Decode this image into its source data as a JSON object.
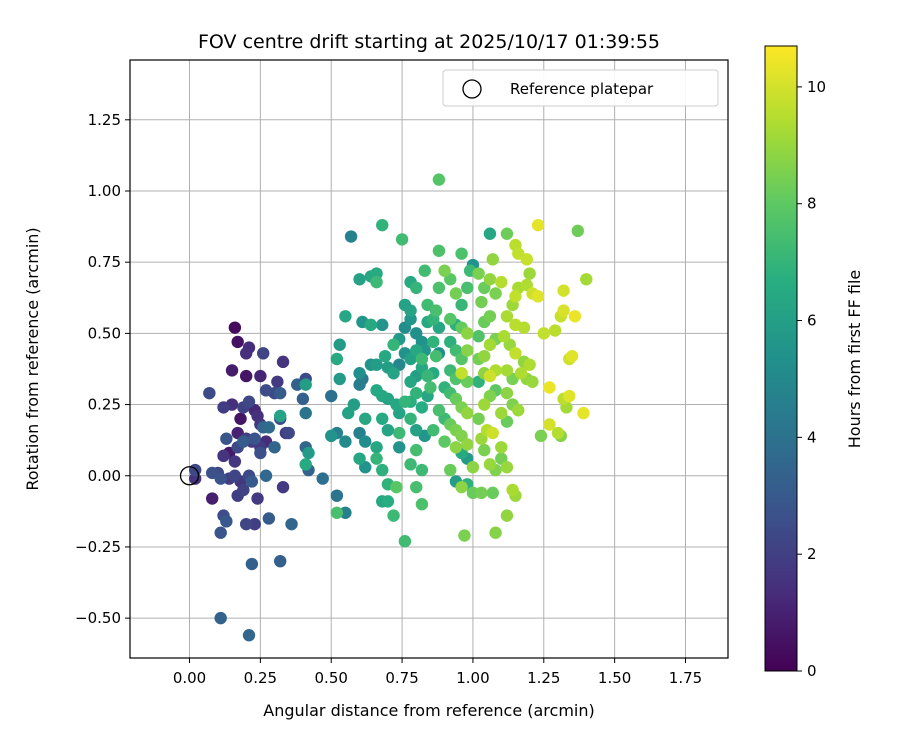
{
  "chart_data": {
    "type": "scatter",
    "title": "FOV centre drift starting at 2025/10/17 01:39:55",
    "xlabel": "Angular distance from reference (arcmin)",
    "ylabel": "Rotation from reference (arcmin)",
    "xlim": [
      -0.21,
      1.9
    ],
    "ylim": [
      -0.64,
      1.46
    ],
    "xticks": [
      "0.00",
      "0.25",
      "0.50",
      "0.75",
      "1.00",
      "1.25",
      "1.50",
      "1.75"
    ],
    "yticks": [
      "−0.50",
      "−0.25",
      "0.00",
      "0.25",
      "0.50",
      "0.75",
      "1.00",
      "1.25"
    ],
    "grid": true,
    "legend": {
      "position": "top-right",
      "label": "Reference platepar"
    },
    "reference_point": {
      "x": 0.0,
      "y": 0.0
    },
    "colorbar": {
      "label": "Hours from first FF file",
      "range": [
        0,
        10.7
      ],
      "ticks": [
        "0",
        "2",
        "4",
        "6",
        "8",
        "10"
      ],
      "colormap": "viridis"
    },
    "points": [
      [
        0.16,
        0.52,
        0.3
      ],
      [
        0.17,
        0.47,
        0.5
      ],
      [
        0.15,
        0.37,
        0.8
      ],
      [
        0.2,
        0.35,
        0.6
      ],
      [
        0.2,
        0.43,
        1.4
      ],
      [
        0.21,
        0.45,
        1.3
      ],
      [
        0.26,
        0.43,
        2.2
      ],
      [
        0.25,
        0.35,
        1.1
      ],
      [
        0.27,
        0.3,
        2.5
      ],
      [
        0.3,
        0.29,
        2.4
      ],
      [
        0.31,
        0.33,
        1.8
      ],
      [
        0.33,
        0.4,
        1.6
      ],
      [
        0.07,
        0.29,
        2.4
      ],
      [
        0.12,
        0.24,
        1.9
      ],
      [
        0.15,
        0.25,
        1.4
      ],
      [
        0.19,
        0.24,
        2.1
      ],
      [
        0.21,
        0.26,
        2.3
      ],
      [
        0.23,
        0.23,
        1.2
      ],
      [
        0.25,
        0.18,
        1.7
      ],
      [
        0.24,
        0.21,
        1.5
      ],
      [
        0.18,
        0.2,
        0.6
      ],
      [
        0.17,
        0.15,
        1.0
      ],
      [
        0.22,
        0.12,
        1.8
      ],
      [
        0.27,
        0.12,
        1.3
      ],
      [
        0.26,
        0.17,
        3.5
      ],
      [
        0.28,
        0.17,
        3.7
      ],
      [
        0.3,
        0.1,
        3.5
      ],
      [
        0.34,
        0.15,
        1.9
      ],
      [
        0.32,
        0.2,
        2.5
      ],
      [
        0.13,
        0.13,
        2.8
      ],
      [
        0.12,
        0.07,
        1.6
      ],
      [
        0.14,
        0.08,
        0.7
      ],
      [
        0.16,
        0.05,
        1.7
      ],
      [
        0.19,
        0.12,
        3.1
      ],
      [
        0.17,
        0.1,
        2.3
      ],
      [
        0.2,
        0.13,
        2.0
      ],
      [
        0.23,
        0.13,
        2.8
      ],
      [
        0.25,
        0.1,
        1.8
      ],
      [
        0.25,
        0.08,
        2.6
      ],
      [
        0.21,
        0.0,
        2.4
      ],
      [
        0.16,
        0.0,
        2.2
      ],
      [
        0.11,
        -0.01,
        2.7
      ],
      [
        0.08,
        0.01,
        2.6
      ],
      [
        0.02,
        0.02,
        2.3
      ],
      [
        0.02,
        -0.01,
        1.6
      ],
      [
        0.1,
        0.01,
        2.4
      ],
      [
        0.14,
        -0.01,
        1.9
      ],
      [
        0.18,
        -0.02,
        1.7
      ],
      [
        0.19,
        -0.05,
        2.1
      ],
      [
        0.22,
        -0.02,
        3.0
      ],
      [
        0.08,
        -0.08,
        0.9
      ],
      [
        0.17,
        -0.07,
        2.0
      ],
      [
        0.24,
        -0.08,
        1.8
      ],
      [
        0.27,
        0.0,
        3.6
      ],
      [
        0.33,
        -0.04,
        1.8
      ],
      [
        0.12,
        -0.14,
        2.5
      ],
      [
        0.13,
        -0.16,
        2.9
      ],
      [
        0.2,
        -0.17,
        2.2
      ],
      [
        0.23,
        -0.17,
        2.0
      ],
      [
        0.28,
        -0.15,
        3.1
      ],
      [
        0.36,
        -0.17,
        3.5
      ],
      [
        0.11,
        -0.2,
        2.8
      ],
      [
        0.22,
        -0.31,
        3.3
      ],
      [
        0.32,
        -0.3,
        3.2
      ],
      [
        0.11,
        -0.5,
        3.4
      ],
      [
        0.21,
        -0.56,
        3.5
      ],
      [
        0.35,
        0.15,
        2.3
      ],
      [
        0.38,
        0.32,
        3.3
      ],
      [
        0.41,
        0.34,
        2.4
      ],
      [
        0.41,
        0.32,
        5.9
      ],
      [
        0.4,
        0.27,
        3.3
      ],
      [
        0.32,
        0.29,
        3.1
      ],
      [
        0.32,
        0.21,
        6.2
      ],
      [
        0.41,
        0.22,
        4.1
      ],
      [
        0.41,
        0.1,
        3.5
      ],
      [
        0.42,
        0.08,
        5.8
      ],
      [
        0.41,
        0.04,
        6.5
      ],
      [
        0.42,
        0.02,
        3.4
      ],
      [
        0.47,
        -0.01,
        3.9
      ],
      [
        0.52,
        -0.07,
        4.1
      ],
      [
        0.52,
        -0.13,
        7.5
      ],
      [
        0.55,
        -0.13,
        4.6
      ],
      [
        0.5,
        0.14,
        5.5
      ],
      [
        0.52,
        0.15,
        4.6
      ],
      [
        0.55,
        0.12,
        5.1
      ],
      [
        0.5,
        0.28,
        4.0
      ],
      [
        0.53,
        0.34,
        5.8
      ],
      [
        0.53,
        0.46,
        5.8
      ],
      [
        0.52,
        0.41,
        6.5
      ],
      [
        0.55,
        0.56,
        6.3
      ],
      [
        0.56,
        0.22,
        6.1
      ],
      [
        0.6,
        0.36,
        5.3
      ],
      [
        0.6,
        0.32,
        4.5
      ],
      [
        0.61,
        0.34,
        4.3
      ],
      [
        0.58,
        0.25,
        5.9
      ],
      [
        0.62,
        0.2,
        6.3
      ],
      [
        0.6,
        0.15,
        4.6
      ],
      [
        0.62,
        0.12,
        5.2
      ],
      [
        0.6,
        0.06,
        6.3
      ],
      [
        0.62,
        0.03,
        5.4
      ],
      [
        0.57,
        0.84,
        4.7
      ],
      [
        0.6,
        0.69,
        6.1
      ],
      [
        0.64,
        0.7,
        6.3
      ],
      [
        0.66,
        0.71,
        6.5
      ],
      [
        0.66,
        0.68,
        7.2
      ],
      [
        0.68,
        0.88,
        6.9
      ],
      [
        0.75,
        0.83,
        7.3
      ],
      [
        0.61,
        0.54,
        5.6
      ],
      [
        0.64,
        0.53,
        6.5
      ],
      [
        0.68,
        0.53,
        5.5
      ],
      [
        0.66,
        0.39,
        5.9
      ],
      [
        0.69,
        0.42,
        6.4
      ],
      [
        0.72,
        0.46,
        7.0
      ],
      [
        0.64,
        0.39,
        5.5
      ],
      [
        0.66,
        0.3,
        6.4
      ],
      [
        0.68,
        0.28,
        6.3
      ],
      [
        0.7,
        0.27,
        6.2
      ],
      [
        0.68,
        0.2,
        6.5
      ],
      [
        0.7,
        0.16,
        6.2
      ],
      [
        0.66,
        0.1,
        6.3
      ],
      [
        0.66,
        0.06,
        7.0
      ],
      [
        0.68,
        0.02,
        6.8
      ],
      [
        0.7,
        -0.03,
        6.9
      ],
      [
        0.68,
        -0.09,
        6.3
      ],
      [
        0.7,
        -0.09,
        6.6
      ],
      [
        0.73,
        -0.04,
        7.9
      ],
      [
        0.72,
        -0.14,
        7.2
      ],
      [
        0.76,
        -0.23,
        7.3
      ],
      [
        0.74,
        0.1,
        5.5
      ],
      [
        0.74,
        0.15,
        7.2
      ],
      [
        0.73,
        0.25,
        6.3
      ],
      [
        0.76,
        0.26,
        7.0
      ],
      [
        0.78,
        0.26,
        6.7
      ],
      [
        0.74,
        0.39,
        4.9
      ],
      [
        0.76,
        0.43,
        5.4
      ],
      [
        0.78,
        0.41,
        6.1
      ],
      [
        0.74,
        0.48,
        5.7
      ],
      [
        0.76,
        0.52,
        5.2
      ],
      [
        0.78,
        0.55,
        5.6
      ],
      [
        0.76,
        0.6,
        6.1
      ],
      [
        0.78,
        0.58,
        6.2
      ],
      [
        0.8,
        0.66,
        7.0
      ],
      [
        0.78,
        0.68,
        6.4
      ],
      [
        0.8,
        0.5,
        5.3
      ],
      [
        0.82,
        0.47,
        5.4
      ],
      [
        0.8,
        0.44,
        6.4
      ],
      [
        0.82,
        0.41,
        7.2
      ],
      [
        0.8,
        0.35,
        6.0
      ],
      [
        0.82,
        0.38,
        6.4
      ],
      [
        0.78,
        0.33,
        6.3
      ],
      [
        0.8,
        0.29,
        6.9
      ],
      [
        0.84,
        0.28,
        6.3
      ],
      [
        0.82,
        0.24,
        6.6
      ],
      [
        0.78,
        0.2,
        7.0
      ],
      [
        0.8,
        0.16,
        6.1
      ],
      [
        0.83,
        0.14,
        5.6
      ],
      [
        0.8,
        0.09,
        7.4
      ],
      [
        0.78,
        0.04,
        7.2
      ],
      [
        0.82,
        0.02,
        7.2
      ],
      [
        0.8,
        -0.04,
        7.5
      ],
      [
        0.82,
        -0.1,
        7.6
      ],
      [
        0.85,
        0.31,
        7.4
      ],
      [
        0.86,
        0.36,
        6.5
      ],
      [
        0.87,
        0.42,
        7.4
      ],
      [
        0.86,
        0.47,
        6.9
      ],
      [
        0.84,
        0.54,
        6.5
      ],
      [
        0.86,
        0.55,
        7.0
      ],
      [
        0.88,
        0.52,
        6.3
      ],
      [
        0.84,
        0.6,
        7.3
      ],
      [
        0.87,
        0.58,
        7.5
      ],
      [
        0.83,
        0.72,
        7.3
      ],
      [
        0.88,
        0.66,
        7.6
      ],
      [
        0.88,
        0.79,
        7.6
      ],
      [
        0.88,
        1.04,
        7.8
      ],
      [
        0.9,
        0.72,
        8.5
      ],
      [
        0.92,
        0.69,
        7.9
      ],
      [
        0.94,
        0.64,
        8.4
      ],
      [
        0.96,
        0.78,
        7.6
      ],
      [
        0.96,
        0.6,
        7.1
      ],
      [
        0.98,
        0.66,
        7.5
      ],
      [
        0.99,
        0.72,
        7.2
      ],
      [
        1.0,
        0.74,
        5.4
      ],
      [
        0.92,
        0.55,
        7.8
      ],
      [
        0.94,
        0.53,
        6.8
      ],
      [
        0.96,
        0.52,
        8.1
      ],
      [
        0.98,
        0.5,
        8.8
      ],
      [
        0.92,
        0.47,
        6.8
      ],
      [
        0.94,
        0.44,
        7.3
      ],
      [
        0.96,
        0.41,
        7.8
      ],
      [
        0.98,
        0.44,
        8.7
      ],
      [
        0.92,
        0.37,
        7.2
      ],
      [
        0.94,
        0.34,
        7.7
      ],
      [
        0.96,
        0.36,
        9.7
      ],
      [
        0.98,
        0.33,
        8.2
      ],
      [
        0.9,
        0.31,
        6.9
      ],
      [
        0.92,
        0.29,
        7.3
      ],
      [
        0.94,
        0.27,
        8.2
      ],
      [
        0.96,
        0.24,
        8.5
      ],
      [
        0.98,
        0.22,
        8.9
      ],
      [
        0.9,
        0.2,
        7.2
      ],
      [
        0.92,
        0.18,
        8.2
      ],
      [
        0.94,
        0.16,
        8.5
      ],
      [
        0.96,
        0.14,
        8.6
      ],
      [
        0.98,
        0.11,
        8.9
      ],
      [
        0.9,
        0.12,
        8.0
      ],
      [
        0.94,
        0.1,
        8.8
      ],
      [
        0.96,
        0.08,
        6.5
      ],
      [
        0.98,
        0.06,
        5.8
      ],
      [
        1.0,
        0.03,
        8.8
      ],
      [
        0.92,
        0.02,
        8.2
      ],
      [
        0.94,
        -0.02,
        5.9
      ],
      [
        0.96,
        -0.04,
        8.8
      ],
      [
        0.98,
        -0.03,
        6.8
      ],
      [
        1.0,
        -0.06,
        8.2
      ],
      [
        0.97,
        -0.21,
        8.5
      ],
      [
        1.03,
        0.13,
        9.1
      ],
      [
        1.05,
        0.16,
        9.5
      ],
      [
        1.07,
        0.15,
        9.9
      ],
      [
        1.04,
        0.09,
        8.5
      ],
      [
        1.06,
        0.04,
        9.0
      ],
      [
        1.1,
        0.06,
        8.4
      ],
      [
        1.03,
        -0.06,
        8.4
      ],
      [
        1.07,
        -0.06,
        8.2
      ],
      [
        1.08,
        0.02,
        8.6
      ],
      [
        1.02,
        0.2,
        8.4
      ],
      [
        1.04,
        0.25,
        9.1
      ],
      [
        1.06,
        0.28,
        8.6
      ],
      [
        1.08,
        0.3,
        8.0
      ],
      [
        1.02,
        0.33,
        6.9
      ],
      [
        1.04,
        0.36,
        8.8
      ],
      [
        1.06,
        0.35,
        9.9
      ],
      [
        1.08,
        0.37,
        9.4
      ],
      [
        1.02,
        0.41,
        8.4
      ],
      [
        1.04,
        0.42,
        8.9
      ],
      [
        1.06,
        0.46,
        9.2
      ],
      [
        1.08,
        0.48,
        8.5
      ],
      [
        1.02,
        0.49,
        7.7
      ],
      [
        1.04,
        0.54,
        8.2
      ],
      [
        1.06,
        0.56,
        8.4
      ],
      [
        1.03,
        0.61,
        8.4
      ],
      [
        1.04,
        0.66,
        8.2
      ],
      [
        1.06,
        0.69,
        8.9
      ],
      [
        1.08,
        0.64,
        8.5
      ],
      [
        1.1,
        0.68,
        9.5
      ],
      [
        1.07,
        0.76,
        8.9
      ],
      [
        1.02,
        0.71,
        8.5
      ],
      [
        1.06,
        0.85,
        6.3
      ],
      [
        1.12,
        0.85,
        8.3
      ],
      [
        1.15,
        0.81,
        9.6
      ],
      [
        1.16,
        0.78,
        9.7
      ],
      [
        1.19,
        0.76,
        9.8
      ],
      [
        1.23,
        0.88,
        10.3
      ],
      [
        1.2,
        0.71,
        9.1
      ],
      [
        1.19,
        0.67,
        9.4
      ],
      [
        1.16,
        0.66,
        9.3
      ],
      [
        1.15,
        0.63,
        9.7
      ],
      [
        1.14,
        0.6,
        9.1
      ],
      [
        1.12,
        0.56,
        9.3
      ],
      [
        1.15,
        0.53,
        9.6
      ],
      [
        1.18,
        0.52,
        9.5
      ],
      [
        1.21,
        0.64,
        9.9
      ],
      [
        1.23,
        0.63,
        10.2
      ],
      [
        1.11,
        0.49,
        9.3
      ],
      [
        1.13,
        0.46,
        9.0
      ],
      [
        1.15,
        0.43,
        9.7
      ],
      [
        1.18,
        0.4,
        8.9
      ],
      [
        1.2,
        0.39,
        9.4
      ],
      [
        1.12,
        0.37,
        9.2
      ],
      [
        1.14,
        0.34,
        8.5
      ],
      [
        1.17,
        0.36,
        9.4
      ],
      [
        1.19,
        0.34,
        8.9
      ],
      [
        1.21,
        0.33,
        9.0
      ],
      [
        1.12,
        0.29,
        8.8
      ],
      [
        1.14,
        0.25,
        8.6
      ],
      [
        1.16,
        0.23,
        9.1
      ],
      [
        1.1,
        0.22,
        9.1
      ],
      [
        1.12,
        0.19,
        8.2
      ],
      [
        1.1,
        0.1,
        9.1
      ],
      [
        1.12,
        0.03,
        9.0
      ],
      [
        1.14,
        -0.05,
        9.3
      ],
      [
        1.15,
        -0.07,
        9.1
      ],
      [
        1.12,
        -0.14,
        8.9
      ],
      [
        1.08,
        -0.2,
        8.7
      ],
      [
        1.24,
        0.14,
        8.5
      ],
      [
        1.27,
        0.31,
        10.4
      ],
      [
        1.3,
        0.15,
        9.5
      ],
      [
        1.32,
        0.65,
        10.0
      ],
      [
        1.32,
        0.58,
        10.1
      ],
      [
        1.31,
        0.56,
        9.8
      ],
      [
        1.36,
        0.56,
        10.4
      ],
      [
        1.34,
        0.41,
        9.9
      ],
      [
        1.35,
        0.42,
        10.2
      ],
      [
        1.32,
        0.27,
        9.6
      ],
      [
        1.33,
        0.24,
        9.2
      ],
      [
        1.37,
        0.86,
        8.3
      ],
      [
        1.4,
        0.69,
        9.2
      ],
      [
        1.39,
        0.22,
        10.3
      ],
      [
        1.34,
        0.28,
        10.2
      ],
      [
        1.31,
        0.14,
        8.7
      ],
      [
        1.27,
        0.18,
        10.0
      ],
      [
        1.25,
        0.5,
        9.7
      ],
      [
        1.29,
        0.51,
        9.6
      ],
      [
        0.88,
        0.43,
        5.3
      ],
      [
        0.83,
        0.44,
        5.6
      ],
      [
        0.84,
        0.35,
        7.1
      ],
      [
        0.72,
        0.36,
        6.2
      ],
      [
        0.7,
        0.38,
        5.9
      ],
      [
        0.74,
        0.22,
        6.2
      ],
      [
        0.86,
        0.16,
        7.3
      ],
      [
        0.88,
        0.23,
        7.5
      ]
    ]
  }
}
